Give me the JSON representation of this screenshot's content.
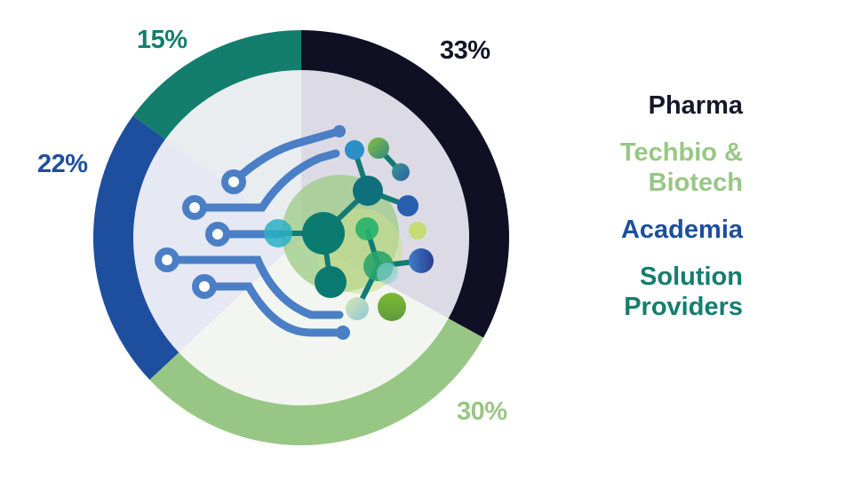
{
  "chart_data": {
    "type": "pie",
    "style": "donut",
    "title": "",
    "categories": [
      "Pharma",
      "Techbio & Biotech",
      "Academia",
      "Solution Providers"
    ],
    "values": [
      33,
      30,
      22,
      15
    ],
    "labels": [
      "33%",
      "30%",
      "22%",
      "15%"
    ],
    "colors": [
      "#0f1024",
      "#98c785",
      "#1d4f9e",
      "#137e6d"
    ],
    "inner_fill_colors": [
      "#dcdbe5",
      "#f3f6f0",
      "#e6e8f4",
      "#e9edf0"
    ],
    "start_angle_deg": 0,
    "direction": "clockwise",
    "legend_position": "right",
    "center_graphic": "circuit-molecule-illustration"
  },
  "legend": [
    {
      "label": "Pharma",
      "color": "#15172a"
    },
    {
      "label": "Techbio &\nBiotech",
      "line1": "Techbio &",
      "line2": "Biotech",
      "color": "#98c785"
    },
    {
      "label": "Academia",
      "color": "#1d4f9e"
    },
    {
      "label": "Solution\nProviders",
      "line1": "Solution",
      "line2": "Providers",
      "color": "#137e6d"
    }
  ],
  "percent_labels": {
    "pharma": "33%",
    "techbio": "30%",
    "academia": "22%",
    "solution": "15%"
  }
}
